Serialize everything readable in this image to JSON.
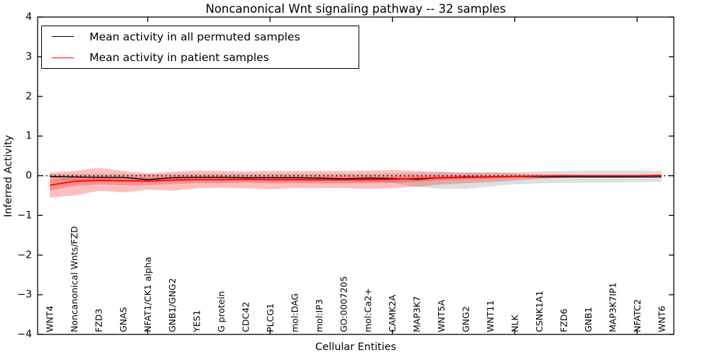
{
  "chart_data": {
    "type": "line",
    "title": "Noncanonical Wnt signaling pathway -- 32 samples",
    "xlabel": "Cellular Entities",
    "ylabel": "Inferred Activity",
    "ylim": [
      -4,
      4
    ],
    "yticks": [
      -4,
      -3,
      -2,
      -1,
      0,
      1,
      2,
      3,
      4
    ],
    "xtick_category_numbers": [
      5,
      10,
      15,
      20,
      25
    ],
    "grid": false,
    "legend_position": "upper left",
    "zero_reference_line": {
      "y": 0,
      "style": "dotted",
      "color": "#000000"
    },
    "categories": [
      "WNT4",
      "Noncanonical Wnts/FZD",
      "FZD3",
      "GNAS",
      "NFAT1/CK1 alpha",
      "GNB1/GNG2",
      "YES1",
      "G protein",
      "CDC42",
      "PLCG1",
      "mol:DAG",
      "mol:IP3",
      "GO:0007205",
      "mol:Ca2+",
      "CAMK2A",
      "MAP3K7",
      "WNT5A",
      "GNG2",
      "WNT11",
      "NLK",
      "CSNK1A1",
      "FZD6",
      "GNB1",
      "MAP3K7IP1",
      "NFATC2",
      "WNT6"
    ],
    "series": [
      {
        "name": "Mean activity in all permuted samples",
        "color": "#000000",
        "width": 1.4,
        "values": [
          -0.02,
          -0.03,
          -0.04,
          -0.04,
          -0.1,
          -0.05,
          -0.04,
          -0.04,
          -0.05,
          -0.05,
          -0.05,
          -0.06,
          -0.08,
          -0.06,
          -0.07,
          -0.09,
          -0.05,
          -0.03,
          -0.03,
          -0.02,
          -0.03,
          -0.03,
          -0.03,
          -0.03,
          -0.03,
          -0.03
        ]
      },
      {
        "name": "Mean activity in patient samples",
        "color": "#ff0000",
        "width": 1.8,
        "values": [
          -0.24,
          -0.14,
          -0.12,
          -0.13,
          -0.13,
          -0.11,
          -0.1,
          -0.1,
          -0.09,
          -0.1,
          -0.1,
          -0.1,
          -0.1,
          -0.1,
          -0.09,
          -0.07,
          -0.05,
          -0.04,
          -0.03,
          -0.02,
          -0.01,
          0.0,
          0.0,
          0.0,
          0.0,
          0.01
        ]
      }
    ],
    "bands": [
      {
        "name": "permuted-samples-spread",
        "color": "#000000",
        "opacity": 0.13,
        "upper": [
          0.05,
          0.05,
          0.05,
          0.05,
          0.04,
          0.05,
          0.05,
          0.05,
          0.05,
          0.05,
          0.05,
          0.05,
          0.05,
          0.05,
          0.06,
          0.07,
          0.08,
          0.08,
          0.08,
          0.09,
          0.11,
          0.12,
          0.13,
          0.13,
          0.13,
          0.12
        ],
        "lower": [
          -0.1,
          -0.11,
          -0.12,
          -0.13,
          -0.17,
          -0.14,
          -0.12,
          -0.12,
          -0.13,
          -0.13,
          -0.13,
          -0.14,
          -0.15,
          -0.15,
          -0.18,
          -0.28,
          -0.33,
          -0.33,
          -0.27,
          -0.22,
          -0.19,
          -0.18,
          -0.17,
          -0.17,
          -0.16,
          -0.15
        ]
      },
      {
        "name": "patient-samples-spread-outer",
        "color": "#ff0000",
        "opacity": 0.25,
        "upper": [
          0.08,
          0.12,
          0.2,
          0.12,
          0.06,
          0.1,
          0.13,
          0.12,
          0.11,
          0.12,
          0.12,
          0.12,
          0.12,
          0.13,
          0.14,
          0.12,
          0.1,
          0.08,
          0.08,
          0.06,
          0.04,
          0.03,
          0.02,
          0.02,
          0.02,
          0.02
        ],
        "lower": [
          -0.55,
          -0.5,
          -0.38,
          -0.42,
          -0.35,
          -0.38,
          -0.32,
          -0.3,
          -0.32,
          -0.34,
          -0.31,
          -0.31,
          -0.31,
          -0.33,
          -0.31,
          -0.28,
          -0.22,
          -0.19,
          -0.16,
          -0.12,
          -0.08,
          -0.05,
          -0.03,
          -0.03,
          -0.03,
          -0.02
        ]
      },
      {
        "name": "patient-samples-spread-inner",
        "color": "#ff0000",
        "opacity": 0.25,
        "upper": [
          -0.1,
          -0.04,
          -0.02,
          -0.03,
          -0.04,
          -0.02,
          -0.02,
          -0.02,
          -0.02,
          -0.02,
          -0.02,
          -0.02,
          -0.02,
          -0.02,
          -0.02,
          -0.01,
          0.0,
          0.0,
          0.0,
          0.0,
          0.01,
          0.01,
          0.01,
          0.01,
          0.01,
          0.02
        ],
        "lower": [
          -0.38,
          -0.26,
          -0.22,
          -0.24,
          -0.24,
          -0.21,
          -0.19,
          -0.19,
          -0.18,
          -0.19,
          -0.19,
          -0.19,
          -0.19,
          -0.19,
          -0.18,
          -0.15,
          -0.11,
          -0.09,
          -0.07,
          -0.05,
          -0.03,
          -0.02,
          -0.01,
          -0.01,
          -0.01,
          -0.01
        ]
      }
    ]
  },
  "legend": {
    "entries": [
      {
        "label": "Mean activity in all permuted samples",
        "color": "#000000"
      },
      {
        "label": "Mean activity in patient samples",
        "color": "#ff0000"
      }
    ]
  }
}
